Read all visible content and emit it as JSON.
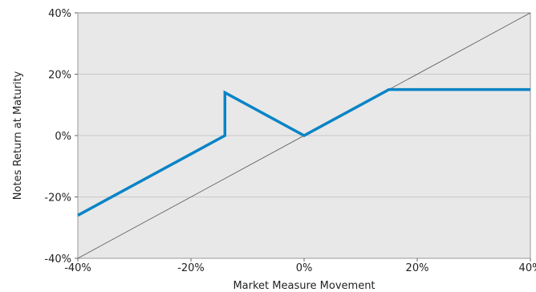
{
  "chart_data": {
    "type": "line",
    "xlabel": "Market Measure Movement",
    "ylabel": "Notes Return at Maturity",
    "xlim": [
      -40,
      40
    ],
    "ylim": [
      -40,
      40
    ],
    "grid": true,
    "colors": {
      "plot_background": "#e8e8e8",
      "gridline": "#c8c8c8",
      "series": "#0a84c6",
      "reference": "#555555"
    },
    "x_ticks": [
      {
        "value": -40,
        "label": "-40%"
      },
      {
        "value": -20,
        "label": "-20%"
      },
      {
        "value": 0,
        "label": "0%"
      },
      {
        "value": 20,
        "label": "20%"
      },
      {
        "value": 40,
        "label": "40%"
      }
    ],
    "y_ticks": [
      {
        "value": -40,
        "label": "-40%"
      },
      {
        "value": -20,
        "label": "-20%"
      },
      {
        "value": 0,
        "label": "0%"
      },
      {
        "value": 20,
        "label": "20%"
      },
      {
        "value": 40,
        "label": "40%"
      }
    ],
    "series": [
      {
        "points": [
          {
            "x": -40,
            "y": -26
          },
          {
            "x": -14,
            "y": 0
          },
          {
            "x": -14,
            "y": 14
          },
          {
            "x": 0,
            "y": 0
          },
          {
            "x": 15,
            "y": 15
          },
          {
            "x": 40,
            "y": 15
          }
        ]
      }
    ],
    "reference_line": {
      "points": [
        {
          "x": -40,
          "y": -40
        },
        {
          "x": 40,
          "y": 40
        }
      ]
    }
  }
}
